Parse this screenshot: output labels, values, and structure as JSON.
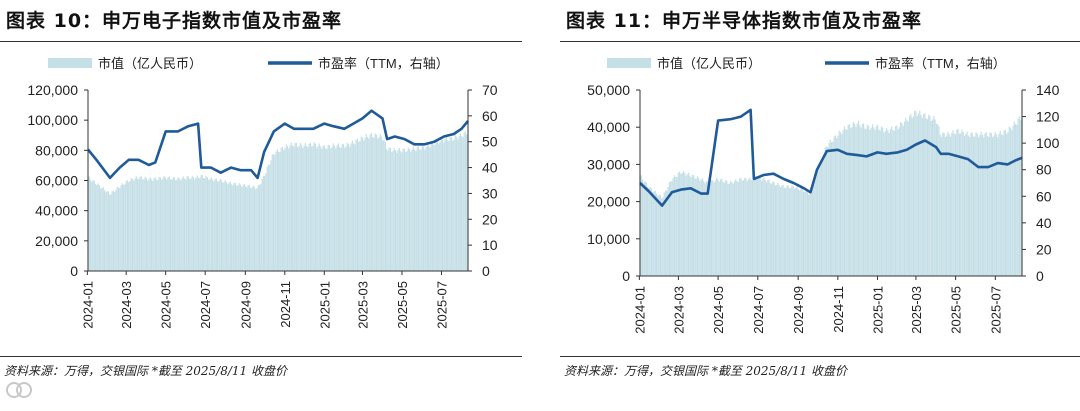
{
  "colors": {
    "bar": "#c5dfe6",
    "line": "#1f5a99",
    "axis": "#333333",
    "text": "#222222"
  },
  "charts": [
    {
      "title": "图表 10：申万电子指数市值及市盈率",
      "source": "资料来源：万得，交银国际   *截至 2025/8/11 收盘价",
      "legend_bar": "市值（亿人民币）",
      "legend_line": "市盈率（TTM，右轴）",
      "left_ticks": [
        "0",
        "20,000",
        "40,000",
        "60,000",
        "80,000",
        "100,000",
        "120,000"
      ],
      "right_ticks": [
        "0",
        "10",
        "20",
        "30",
        "40",
        "50",
        "60",
        "70"
      ],
      "x_ticks": [
        "2024-01",
        "2024-03",
        "2024-05",
        "2024-07",
        "2024-09",
        "2024-11",
        "2025-01",
        "2025-03",
        "2025-05",
        "2025-07"
      ]
    },
    {
      "title": "图表 11：申万半导体指数市值及市盈率",
      "source": "资料来源：万得，交银国际   *截至 2025/8/11 收盘价",
      "legend_bar": "市值（亿人民币）",
      "legend_line": "市盈率（TTM，右轴）",
      "left_ticks": [
        "0",
        "10,000",
        "20,000",
        "30,000",
        "40,000",
        "50,000"
      ],
      "right_ticks": [
        "0",
        "20",
        "40",
        "60",
        "80",
        "100",
        "120",
        "140"
      ],
      "x_ticks": [
        "2024-01",
        "2024-03",
        "2024-05",
        "2024-07",
        "2024-09",
        "2024-11",
        "2025-01",
        "2025-03",
        "2025-05",
        "2025-07"
      ]
    }
  ],
  "chart_data": [
    {
      "type": "bar",
      "title": "图表 10：申万电子指数市值及市盈率",
      "dates": [
        "2024-01-02",
        "2024-01-15",
        "2024-02-05",
        "2024-02-20",
        "2024-03-05",
        "2024-03-20",
        "2024-04-05",
        "2024-04-15",
        "2024-05-01",
        "2024-05-20",
        "2024-06-05",
        "2024-06-20",
        "2024-06-25",
        "2024-07-10",
        "2024-07-25",
        "2024-08-10",
        "2024-08-25",
        "2024-09-10",
        "2024-09-20",
        "2024-09-30",
        "2024-10-15",
        "2024-11-01",
        "2024-11-15",
        "2024-12-01",
        "2024-12-15",
        "2025-01-01",
        "2025-01-15",
        "2025-02-01",
        "2025-02-15",
        "2025-03-01",
        "2025-03-15",
        "2025-04-01",
        "2025-04-08",
        "2025-04-20",
        "2025-05-05",
        "2025-05-20",
        "2025-06-05",
        "2025-06-20",
        "2025-07-05",
        "2025-07-20",
        "2025-08-01",
        "2025-08-11"
      ],
      "series": [
        {
          "name": "市值（亿人民币）",
          "axis": "left",
          "ylim": [
            0,
            120000
          ],
          "values": [
            62000,
            58000,
            51000,
            56000,
            60000,
            62000,
            61000,
            61000,
            62000,
            61000,
            62000,
            62000,
            63000,
            61000,
            60000,
            58000,
            57000,
            56000,
            55000,
            63000,
            78000,
            82000,
            84000,
            83000,
            84000,
            82000,
            83000,
            83000,
            85000,
            88000,
            90000,
            89000,
            81000,
            80000,
            80000,
            81000,
            82000,
            85000,
            87000,
            88000,
            90000,
            92000
          ]
        },
        {
          "name": "市盈率（TTM，右轴）",
          "axis": "right",
          "ylim": [
            0,
            70
          ],
          "values": [
            47,
            43,
            36,
            40,
            43,
            43,
            41,
            42,
            54,
            54,
            56,
            57,
            40,
            40,
            38,
            40,
            39,
            39,
            36,
            46,
            54,
            57,
            55,
            55,
            55,
            57,
            56,
            55,
            57,
            59,
            62,
            59,
            51,
            52,
            51,
            49,
            49,
            50,
            52,
            53,
            55,
            58
          ]
        }
      ]
    },
    {
      "type": "bar",
      "title": "图表 11：申万半导体指数市值及市盈率",
      "dates": [
        "2024-01-02",
        "2024-01-15",
        "2024-02-05",
        "2024-02-20",
        "2024-03-05",
        "2024-03-20",
        "2024-04-05",
        "2024-04-15",
        "2024-05-01",
        "2024-05-20",
        "2024-06-05",
        "2024-06-20",
        "2024-06-25",
        "2024-07-10",
        "2024-07-25",
        "2024-08-10",
        "2024-08-25",
        "2024-09-10",
        "2024-09-20",
        "2024-09-30",
        "2024-10-15",
        "2024-11-01",
        "2024-11-15",
        "2024-12-01",
        "2024-12-15",
        "2025-01-01",
        "2025-01-15",
        "2025-02-01",
        "2025-02-15",
        "2025-03-01",
        "2025-03-15",
        "2025-04-01",
        "2025-04-08",
        "2025-04-20",
        "2025-05-05",
        "2025-05-20",
        "2025-06-05",
        "2025-06-20",
        "2025-07-05",
        "2025-07-20",
        "2025-08-01",
        "2025-08-11"
      ],
      "series": [
        {
          "name": "市值（亿人民币）",
          "axis": "left",
          "ylim": [
            0,
            50000
          ],
          "values": [
            27000,
            24000,
            21000,
            26000,
            28000,
            27000,
            26000,
            25000,
            26000,
            25000,
            26000,
            26000,
            26500,
            26000,
            25000,
            24000,
            24000,
            23000,
            22000,
            28000,
            35000,
            38000,
            40000,
            41000,
            40000,
            40000,
            39000,
            40000,
            42000,
            44000,
            43000,
            42000,
            38000,
            38000,
            39000,
            38000,
            38000,
            38000,
            38000,
            39000,
            41000,
            43000
          ]
        },
        {
          "name": "市盈率（TTM，右轴）",
          "axis": "right",
          "ylim": [
            0,
            140
          ],
          "values": [
            70,
            64,
            53,
            63,
            65,
            66,
            62,
            62,
            117,
            118,
            120,
            125,
            73,
            76,
            77,
            73,
            70,
            66,
            63,
            80,
            94,
            95,
            92,
            91,
            90,
            93,
            92,
            93,
            95,
            99,
            102,
            97,
            92,
            92,
            90,
            88,
            82,
            82,
            85,
            84,
            87,
            89
          ]
        }
      ]
    }
  ]
}
